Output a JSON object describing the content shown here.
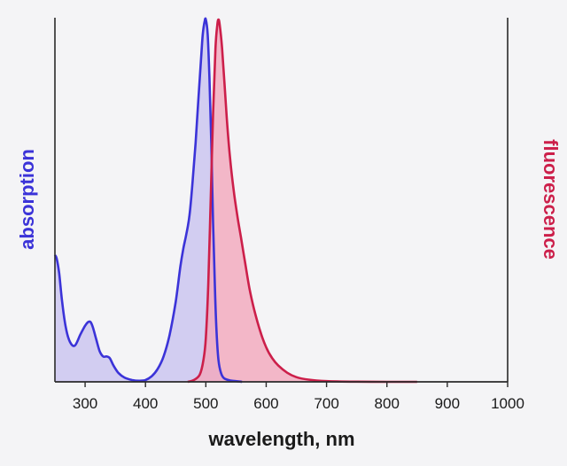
{
  "chart_data": {
    "type": "area",
    "xlabel": "wavelength, nm",
    "ylabel_left": "absorption",
    "ylabel_right": "fluorescence",
    "xlim": [
      250,
      1000
    ],
    "x_ticks": [
      300,
      400,
      500,
      600,
      700,
      800,
      900,
      1000
    ],
    "grid": false,
    "colors": {
      "absorption": "#3b33d8",
      "fluorescence": "#cc1f4a",
      "absorption_fill": "#c9c3f0",
      "fluorescence_fill": "#f2a8bd"
    },
    "series": [
      {
        "name": "absorption",
        "x": [
          250,
          253,
          257,
          262,
          268,
          275,
          283,
          292,
          300,
          305,
          309,
          313,
          318,
          324,
          330,
          336,
          341,
          347,
          355,
          365,
          378,
          390,
          400,
          410,
          420,
          430,
          440,
          450,
          458,
          463,
          468,
          473,
          478,
          483,
          488,
          492,
          495,
          498,
          500,
          503,
          506,
          509,
          512,
          515,
          518,
          521,
          525,
          530,
          540,
          560
        ],
        "y": [
          0.35,
          0.34,
          0.3,
          0.22,
          0.15,
          0.11,
          0.1,
          0.13,
          0.155,
          0.165,
          0.165,
          0.15,
          0.12,
          0.085,
          0.07,
          0.07,
          0.065,
          0.045,
          0.025,
          0.012,
          0.005,
          0.003,
          0.005,
          0.015,
          0.035,
          0.07,
          0.13,
          0.22,
          0.32,
          0.37,
          0.41,
          0.46,
          0.55,
          0.66,
          0.79,
          0.89,
          0.96,
          0.995,
          1.0,
          0.96,
          0.84,
          0.66,
          0.44,
          0.26,
          0.13,
          0.06,
          0.025,
          0.01,
          0.004,
          0.0
        ]
      },
      {
        "name": "fluorescence",
        "x": [
          470,
          480,
          490,
          496,
          500,
          504,
          508,
          512,
          516,
          519,
          521,
          523,
          527,
          531,
          535,
          540,
          546,
          552,
          558,
          565,
          572,
          580,
          590,
          600,
          610,
          620,
          635,
          650,
          670,
          700,
          750,
          800,
          850
        ],
        "y": [
          0.0,
          0.005,
          0.02,
          0.06,
          0.12,
          0.27,
          0.5,
          0.74,
          0.92,
          0.985,
          1.0,
          0.985,
          0.92,
          0.82,
          0.72,
          0.62,
          0.53,
          0.46,
          0.4,
          0.33,
          0.26,
          0.2,
          0.14,
          0.095,
          0.065,
          0.045,
          0.025,
          0.013,
          0.006,
          0.002,
          0.0005,
          0.0,
          0.0
        ]
      }
    ]
  }
}
